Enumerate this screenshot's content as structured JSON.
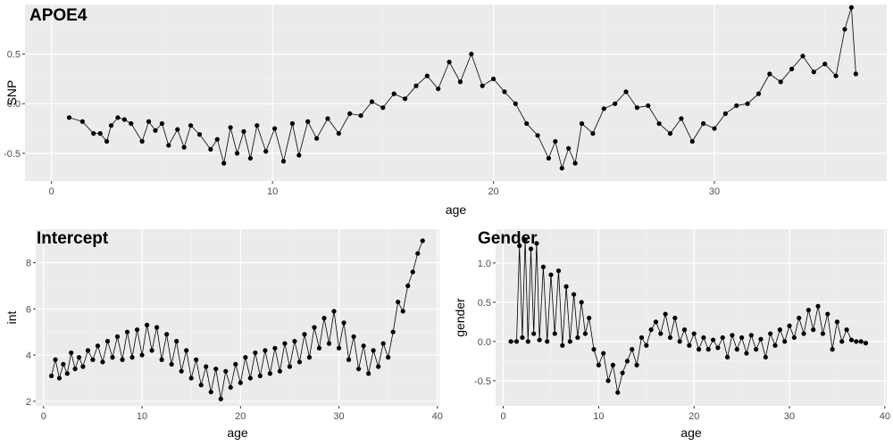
{
  "colors": {
    "panel_bg": "#ebebeb",
    "grid_major": "#ffffff",
    "grid_minor": "#f4f4f4",
    "tick_text": "#4d4d4d",
    "line": "#000000",
    "point": "#000000"
  },
  "chart_data": [
    {
      "id": "apoe4",
      "type": "line",
      "title": "APOE4",
      "xlabel": "age",
      "ylabel": "SNP",
      "xlim": [
        -1.2,
        37.8
      ],
      "ylim": [
        -0.78,
        1.0
      ],
      "x_ticks": [
        0,
        10,
        20,
        30
      ],
      "x_tick_labels": [
        "0",
        "10",
        "20",
        "30"
      ],
      "y_ticks": [
        -0.5,
        0.0,
        0.5
      ],
      "y_tick_labels": [
        "-0.5",
        "0.0",
        "0.5"
      ],
      "grid": true,
      "series": [
        {
          "x": [
            0.8,
            1.4,
            1.9,
            2.2,
            2.5,
            2.7,
            3.0,
            3.3,
            3.6,
            4.1,
            4.4,
            4.7,
            5.0,
            5.3,
            5.7,
            6.0,
            6.3,
            6.7,
            7.2,
            7.5,
            7.8,
            8.1,
            8.4,
            8.7,
            9.0,
            9.3,
            9.7,
            10.1,
            10.5,
            10.9,
            11.2,
            11.6,
            12.0,
            12.5,
            13.0,
            13.5,
            14.0,
            14.5,
            15.0,
            15.5,
            16.0,
            16.5,
            17.0,
            17.5,
            18.0,
            18.5,
            19.0,
            19.5,
            20.0,
            20.5,
            21.0,
            21.5,
            22.0,
            22.5,
            22.8,
            23.1,
            23.4,
            23.7,
            24.0,
            24.5,
            25.0,
            25.5,
            26.0,
            26.5,
            27.0,
            27.5,
            28.0,
            28.5,
            29.0,
            29.5,
            30.0,
            30.5,
            31.0,
            31.5,
            32.0,
            32.5,
            33.0,
            33.5,
            34.0,
            34.5,
            35.0,
            35.5,
            35.9,
            36.2,
            36.4
          ],
          "y": [
            -0.14,
            -0.18,
            -0.3,
            -0.3,
            -0.38,
            -0.22,
            -0.14,
            -0.16,
            -0.2,
            -0.38,
            -0.18,
            -0.27,
            -0.2,
            -0.42,
            -0.26,
            -0.44,
            -0.22,
            -0.31,
            -0.46,
            -0.36,
            -0.6,
            -0.24,
            -0.5,
            -0.28,
            -0.55,
            -0.22,
            -0.48,
            -0.25,
            -0.58,
            -0.2,
            -0.52,
            -0.18,
            -0.35,
            -0.15,
            -0.3,
            -0.1,
            -0.12,
            0.02,
            -0.04,
            0.1,
            0.05,
            0.18,
            0.28,
            0.15,
            0.42,
            0.22,
            0.5,
            0.18,
            0.25,
            0.12,
            0.0,
            -0.2,
            -0.32,
            -0.55,
            -0.38,
            -0.65,
            -0.45,
            -0.6,
            -0.2,
            -0.3,
            -0.05,
            0.0,
            0.12,
            -0.04,
            -0.02,
            -0.2,
            -0.3,
            -0.15,
            -0.38,
            -0.2,
            -0.25,
            -0.1,
            -0.02,
            0.0,
            0.1,
            0.3,
            0.22,
            0.35,
            0.48,
            0.32,
            0.4,
            0.28,
            0.75,
            0.97,
            0.3
          ]
        }
      ]
    },
    {
      "id": "intercept",
      "type": "line",
      "title": "Intercept",
      "xlabel": "age",
      "ylabel": "int",
      "xlim": [
        -0.8,
        40.2
      ],
      "ylim": [
        1.8,
        9.45
      ],
      "x_ticks": [
        0,
        10,
        20,
        30,
        40
      ],
      "x_tick_labels": [
        "0",
        "10",
        "20",
        "30",
        "40"
      ],
      "y_ticks": [
        2,
        4,
        6,
        8
      ],
      "y_tick_labels": [
        "2",
        "4",
        "6",
        "8"
      ],
      "grid": true,
      "series": [
        {
          "x": [
            0.8,
            1.2,
            1.6,
            2.0,
            2.4,
            2.8,
            3.2,
            3.6,
            4.0,
            4.5,
            5.0,
            5.5,
            6.0,
            6.5,
            7.0,
            7.5,
            8.0,
            8.5,
            9.0,
            9.5,
            10.0,
            10.5,
            11.0,
            11.5,
            12.0,
            12.5,
            13.0,
            13.5,
            14.0,
            14.5,
            15.0,
            15.5,
            16.0,
            16.5,
            17.0,
            17.5,
            18.0,
            18.5,
            19.0,
            19.5,
            20.0,
            20.5,
            21.0,
            21.5,
            22.0,
            22.5,
            23.0,
            23.5,
            24.0,
            24.5,
            25.0,
            25.5,
            26.0,
            26.5,
            27.0,
            27.5,
            28.0,
            28.5,
            29.0,
            29.5,
            30.0,
            30.5,
            31.0,
            31.5,
            32.0,
            32.5,
            33.0,
            33.5,
            34.0,
            34.5,
            35.0,
            35.5,
            36.0,
            36.5,
            37.0,
            37.5,
            38.0,
            38.5
          ],
          "y": [
            3.1,
            3.8,
            3.0,
            3.6,
            3.2,
            4.1,
            3.4,
            3.9,
            3.5,
            4.2,
            3.8,
            4.4,
            3.7,
            4.6,
            3.9,
            4.8,
            3.8,
            5.0,
            3.9,
            5.1,
            4.0,
            5.3,
            4.2,
            5.2,
            3.8,
            4.9,
            3.6,
            4.6,
            3.3,
            4.2,
            3.0,
            3.8,
            2.7,
            3.5,
            2.4,
            3.4,
            2.1,
            3.3,
            2.6,
            3.6,
            2.8,
            3.9,
            3.0,
            4.1,
            3.1,
            4.2,
            3.2,
            4.3,
            3.3,
            4.5,
            3.5,
            4.6,
            3.7,
            4.9,
            3.9,
            5.2,
            4.3,
            5.6,
            4.5,
            5.9,
            4.3,
            5.4,
            3.8,
            4.8,
            3.4,
            4.4,
            3.2,
            4.2,
            3.5,
            4.5,
            3.9,
            5.0,
            6.3,
            5.9,
            7.0,
            7.6,
            8.4,
            8.95
          ]
        }
      ]
    },
    {
      "id": "gender",
      "type": "line",
      "title": "Gender",
      "xlabel": "age",
      "ylabel": "gender",
      "xlim": [
        -0.8,
        40.2
      ],
      "ylim": [
        -0.82,
        1.43
      ],
      "x_ticks": [
        0,
        10,
        20,
        30,
        40
      ],
      "x_tick_labels": [
        "0",
        "10",
        "20",
        "30",
        "40"
      ],
      "y_ticks": [
        -0.5,
        0.0,
        0.5,
        1.0
      ],
      "y_tick_labels": [
        "-0.5",
        "0.0",
        "0.5",
        "1.0"
      ],
      "grid": true,
      "series": [
        {
          "x": [
            0.8,
            1.4,
            1.7,
            2.0,
            2.3,
            2.6,
            2.9,
            3.2,
            3.5,
            3.8,
            4.2,
            4.6,
            5.0,
            5.4,
            5.8,
            6.2,
            6.6,
            7.0,
            7.4,
            7.8,
            8.2,
            8.6,
            9.0,
            9.5,
            10.0,
            10.5,
            11.0,
            11.5,
            12.0,
            12.5,
            13.0,
            13.5,
            14.0,
            14.5,
            15.0,
            15.5,
            16.0,
            16.5,
            17.0,
            17.5,
            18.0,
            18.5,
            19.0,
            19.5,
            20.0,
            20.5,
            21.0,
            21.5,
            22.0,
            22.5,
            23.0,
            23.5,
            24.0,
            24.5,
            25.0,
            25.5,
            26.0,
            26.5,
            27.0,
            27.5,
            28.0,
            28.5,
            29.0,
            29.5,
            30.0,
            30.5,
            31.0,
            31.5,
            32.0,
            32.5,
            33.0,
            33.5,
            34.0,
            34.5,
            35.0,
            35.5,
            36.0,
            36.5,
            37.0,
            37.5,
            38.0
          ],
          "y": [
            0.0,
            0.0,
            1.22,
            0.05,
            1.3,
            0.0,
            1.18,
            0.1,
            1.25,
            0.02,
            0.95,
            0.0,
            0.85,
            0.1,
            0.9,
            -0.05,
            0.7,
            0.0,
            0.6,
            0.05,
            0.5,
            0.1,
            0.3,
            -0.1,
            -0.3,
            -0.15,
            -0.5,
            -0.3,
            -0.65,
            -0.4,
            -0.25,
            -0.1,
            -0.3,
            0.05,
            -0.05,
            0.15,
            0.25,
            0.1,
            0.35,
            0.05,
            0.3,
            0.0,
            0.15,
            -0.05,
            0.1,
            -0.1,
            0.05,
            -0.1,
            0.02,
            -0.08,
            0.05,
            -0.2,
            0.08,
            -0.1,
            0.05,
            -0.15,
            0.08,
            -0.1,
            0.03,
            -0.2,
            0.1,
            -0.05,
            0.15,
            0.0,
            0.2,
            0.05,
            0.3,
            0.1,
            0.4,
            0.15,
            0.45,
            0.1,
            0.35,
            -0.1,
            0.25,
            0.0,
            0.15,
            0.02,
            0.0,
            0.0,
            -0.02
          ]
        }
      ]
    }
  ]
}
